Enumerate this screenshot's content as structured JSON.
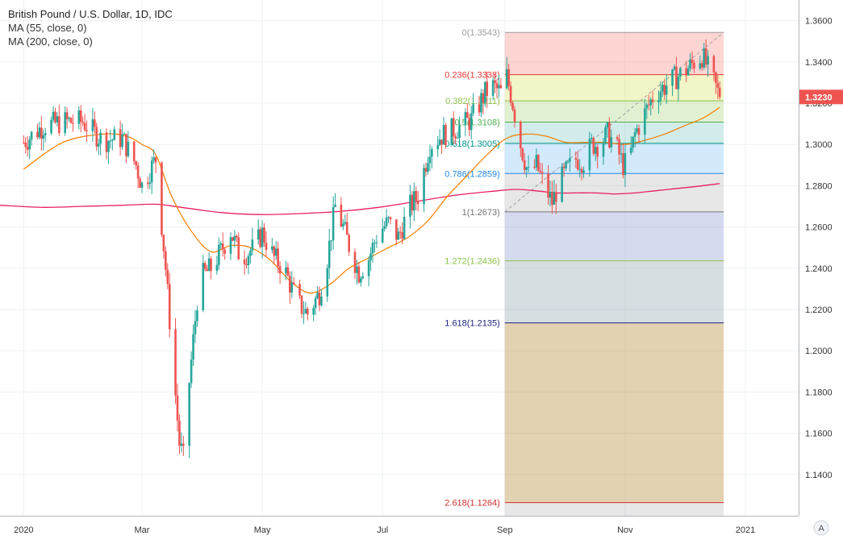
{
  "legend": {
    "title": "British Pound / U.S. Dollar, 1D, IDC",
    "ma1": "MA (55, close, 0)",
    "ma2": "MA (200, close, 0)"
  },
  "colors": {
    "up": "#26a69a",
    "down": "#ef5350",
    "ma55": "#f57c00",
    "ma200": "#e91e63",
    "price_tag": "#ef5350",
    "grid": "#eef0f3"
  },
  "corner_label": "A",
  "chart_data": {
    "type": "candlestick",
    "instrument": "British Pound / U.S. Dollar",
    "timeframe": "1D",
    "source": "IDC",
    "last_price": 1.323,
    "last_price_label": "1.3230",
    "y_range": [
      1.12,
      1.37
    ],
    "y_ticks": [
      "1.3600",
      "1.3400",
      "1.3200",
      "1.3000",
      "1.2800",
      "1.2600",
      "1.2400",
      "1.2200",
      "1.2000",
      "1.1800",
      "1.1600",
      "1.1400"
    ],
    "x_labels": [
      {
        "label": "2020",
        "day": 0
      },
      {
        "label": "Mar",
        "day": 60
      },
      {
        "label": "May",
        "day": 121
      },
      {
        "label": "Jul",
        "day": 182
      },
      {
        "label": "Sep",
        "day": 244
      },
      {
        "label": "Nov",
        "day": 305
      },
      {
        "label": "2021",
        "day": 366
      }
    ],
    "x_range": [
      -12,
      393
    ],
    "price_path": [
      [
        0,
        1.301
      ],
      [
        10,
        1.309
      ],
      [
        20,
        1.311
      ],
      [
        30,
        1.311
      ],
      [
        40,
        1.302
      ],
      [
        50,
        1.303
      ],
      [
        57,
        1.29
      ],
      [
        60,
        1.28
      ],
      [
        67,
        1.293
      ],
      [
        72,
        1.24
      ],
      [
        76,
        1.19
      ],
      [
        79,
        1.155
      ],
      [
        81,
        1.148
      ],
      [
        84,
        1.185
      ],
      [
        89,
        1.235
      ],
      [
        95,
        1.24
      ],
      [
        100,
        1.248
      ],
      [
        105,
        1.258
      ],
      [
        110,
        1.245
      ],
      [
        117,
        1.25
      ],
      [
        121,
        1.257
      ],
      [
        127,
        1.245
      ],
      [
        132,
        1.24
      ],
      [
        136,
        1.23
      ],
      [
        140,
        1.222
      ],
      [
        144,
        1.218
      ],
      [
        150,
        1.228
      ],
      [
        154,
        1.245
      ],
      [
        158,
        1.27
      ],
      [
        162,
        1.26
      ],
      [
        166,
        1.248
      ],
      [
        170,
        1.238
      ],
      [
        175,
        1.245
      ],
      [
        180,
        1.258
      ],
      [
        185,
        1.262
      ],
      [
        190,
        1.255
      ],
      [
        196,
        1.27
      ],
      [
        200,
        1.275
      ],
      [
        206,
        1.3
      ],
      [
        213,
        1.305
      ],
      [
        220,
        1.308
      ],
      [
        227,
        1.312
      ],
      [
        234,
        1.325
      ],
      [
        238,
        1.328
      ],
      [
        242,
        1.325
      ],
      [
        245,
        1.333
      ],
      [
        248,
        1.32
      ],
      [
        252,
        1.3
      ],
      [
        256,
        1.285
      ],
      [
        260,
        1.29
      ],
      [
        264,
        1.28
      ],
      [
        268,
        1.272
      ],
      [
        272,
        1.282
      ],
      [
        276,
        1.288
      ],
      [
        280,
        1.293
      ],
      [
        284,
        1.292
      ],
      [
        288,
        1.3
      ],
      [
        292,
        1.3
      ],
      [
        296,
        1.305
      ],
      [
        300,
        1.3
      ],
      [
        304,
        1.29
      ],
      [
        307,
        1.292
      ],
      [
        310,
        1.305
      ],
      [
        315,
        1.315
      ],
      [
        320,
        1.325
      ],
      [
        325,
        1.328
      ],
      [
        330,
        1.332
      ],
      [
        335,
        1.335
      ],
      [
        340,
        1.34
      ],
      [
        344,
        1.343
      ],
      [
        347,
        1.337
      ],
      [
        350,
        1.33
      ],
      [
        353,
        1.323
      ]
    ],
    "ma55_path": [
      [
        0,
        1.288
      ],
      [
        20,
        1.301
      ],
      [
        40,
        1.305
      ],
      [
        52,
        1.304
      ],
      [
        60,
        1.3
      ],
      [
        67,
        1.295
      ],
      [
        75,
        1.275
      ],
      [
        85,
        1.258
      ],
      [
        95,
        1.248
      ],
      [
        105,
        1.251
      ],
      [
        115,
        1.25
      ],
      [
        125,
        1.244
      ],
      [
        135,
        1.234
      ],
      [
        145,
        1.228
      ],
      [
        155,
        1.232
      ],
      [
        165,
        1.24
      ],
      [
        175,
        1.245
      ],
      [
        185,
        1.25
      ],
      [
        195,
        1.255
      ],
      [
        205,
        1.263
      ],
      [
        215,
        1.275
      ],
      [
        225,
        1.285
      ],
      [
        235,
        1.295
      ],
      [
        245,
        1.303
      ],
      [
        255,
        1.305
      ],
      [
        265,
        1.304
      ],
      [
        275,
        1.301
      ],
      [
        285,
        1.301
      ],
      [
        295,
        1.301
      ],
      [
        305,
        1.3
      ],
      [
        315,
        1.302
      ],
      [
        325,
        1.305
      ],
      [
        335,
        1.309
      ],
      [
        345,
        1.313
      ],
      [
        353,
        1.318
      ]
    ],
    "ma200_path": [
      [
        -12,
        1.2705
      ],
      [
        10,
        1.2695
      ],
      [
        30,
        1.27
      ],
      [
        50,
        1.2705
      ],
      [
        67,
        1.271
      ],
      [
        80,
        1.2695
      ],
      [
        100,
        1.267
      ],
      [
        120,
        1.266
      ],
      [
        140,
        1.2665
      ],
      [
        160,
        1.2675
      ],
      [
        180,
        1.2695
      ],
      [
        200,
        1.2725
      ],
      [
        220,
        1.2755
      ],
      [
        240,
        1.2775
      ],
      [
        250,
        1.2782
      ],
      [
        260,
        1.2775
      ],
      [
        270,
        1.2765
      ],
      [
        280,
        1.2765
      ],
      [
        290,
        1.2765
      ],
      [
        300,
        1.276
      ],
      [
        310,
        1.2765
      ],
      [
        320,
        1.2775
      ],
      [
        330,
        1.2785
      ],
      [
        340,
        1.2795
      ],
      [
        353,
        1.281
      ]
    ],
    "fib_retracement": {
      "start_day": 244,
      "end_day": 355,
      "trend_from": [
        244,
        1.2673
      ],
      "trend_to": [
        355,
        1.3543
      ],
      "levels": [
        {
          "label": "0(1.3543)",
          "price": 1.3543,
          "line": "#9e9e9e",
          "fill": "rgba(244,67,54,0.22)"
        },
        {
          "label": "0.236(1.3338)",
          "price": 1.3338,
          "line": "#e53935",
          "fill": "rgba(205,220,57,0.28)"
        },
        {
          "label": "0.382(1.3211)",
          "price": 1.3211,
          "line": "#8bc34a",
          "fill": "rgba(139,195,74,0.25)"
        },
        {
          "label": "0.5(1.3108)",
          "price": 1.3108,
          "line": "#4caf50",
          "fill": "rgba(0,150,136,0.18)"
        },
        {
          "label": "0.618(1.3005)",
          "price": 1.3005,
          "line": "#009688",
          "fill": "rgba(33,150,243,0.20)"
        },
        {
          "label": "0.786(1.2859)",
          "price": 1.2859,
          "line": "#1e88e5",
          "fill": "rgba(158,158,158,0.25)"
        },
        {
          "label": "1(1.2673)",
          "price": 1.2673,
          "line": "#757575",
          "fill": "rgba(92,107,192,0.25)"
        },
        {
          "label": "1.272(1.2436)",
          "price": 1.2436,
          "line": "#8bc34a",
          "fill": "rgba(96,125,139,0.25)"
        },
        {
          "label": "1.618(1.2135)",
          "price": 1.2135,
          "line": "#1a237e",
          "fill": "rgba(176,125,33,0.35)"
        },
        {
          "label": "2.618(1.1264)",
          "price": 1.1264,
          "line": "#d32f2f",
          "fill": "rgba(158,158,158,0.25)"
        }
      ]
    }
  }
}
